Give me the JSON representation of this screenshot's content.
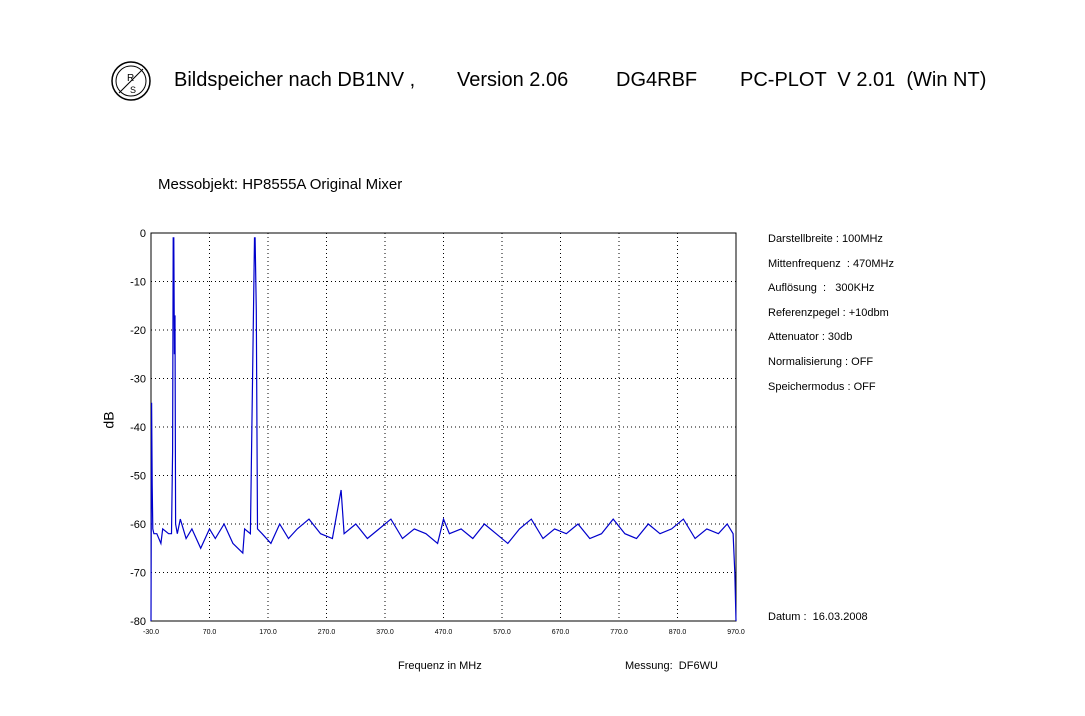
{
  "header": {
    "part1": "Bildspeicher nach DB1NV ,",
    "part2": "Version 2.06",
    "part3": "DG4RBF",
    "part4": "PC-PLOT  V 2.01  (Win NT)",
    "logo_text": "R&S"
  },
  "subtitle": "Messobjekt: HP8555A Original Mixer",
  "settings": [
    "Darstellbreite : 100MHz",
    "Mittenfrequenz  : 470MHz",
    "Auflösung  :   300KHz",
    "Referenzpegel : +10dbm",
    "Attenuator : 30db",
    "Normalisierung : OFF",
    "Speichermodus : OFF"
  ],
  "datum": "Datum :  16.03.2008",
  "messung": "Messung:  DF6WU",
  "chart_data": {
    "type": "line",
    "title": "",
    "xlabel": "Frequenz in MHz",
    "ylabel": "dB",
    "x_ticks": [
      "-30.0",
      "70.0",
      "170.0",
      "270.0",
      "370.0",
      "470.0",
      "570.0",
      "670.0",
      "770.0",
      "870.0",
      "970.0"
    ],
    "y_ticks": [
      "0",
      "-10",
      "-20",
      "-30",
      "-40",
      "-50",
      "-60",
      "-70",
      "-80"
    ],
    "xlim": [
      -30,
      970
    ],
    "ylim": [
      -80,
      0
    ],
    "grid": true,
    "series": [
      {
        "color": "#0000cc",
        "points": [
          [
            -30,
            -80
          ],
          [
            -29,
            -35
          ],
          [
            -28,
            -52
          ],
          [
            -27,
            -61
          ],
          [
            -25,
            -62
          ],
          [
            -20,
            -62
          ],
          [
            -13,
            -64
          ],
          [
            -10,
            -61
          ],
          [
            0,
            -62
          ],
          [
            5,
            -62
          ],
          [
            7,
            -45
          ],
          [
            8,
            -1
          ],
          [
            9,
            -1
          ],
          [
            10,
            -25
          ],
          [
            11,
            -17
          ],
          [
            12,
            -60
          ],
          [
            15,
            -62
          ],
          [
            20,
            -59
          ],
          [
            30,
            -63
          ],
          [
            40,
            -61
          ],
          [
            55,
            -65
          ],
          [
            70,
            -61
          ],
          [
            80,
            -63
          ],
          [
            95,
            -60
          ],
          [
            110,
            -64
          ],
          [
            127,
            -66
          ],
          [
            130,
            -61
          ],
          [
            140,
            -62
          ],
          [
            147,
            -1
          ],
          [
            148,
            -1
          ],
          [
            150,
            -16
          ],
          [
            152,
            -61
          ],
          [
            160,
            -62
          ],
          [
            175,
            -64
          ],
          [
            190,
            -60
          ],
          [
            205,
            -63
          ],
          [
            220,
            -61
          ],
          [
            240,
            -59
          ],
          [
            260,
            -62
          ],
          [
            280,
            -63
          ],
          [
            295,
            -53
          ],
          [
            300,
            -62
          ],
          [
            320,
            -60
          ],
          [
            340,
            -63
          ],
          [
            360,
            -61
          ],
          [
            380,
            -59
          ],
          [
            400,
            -63
          ],
          [
            420,
            -61
          ],
          [
            440,
            -62
          ],
          [
            460,
            -64
          ],
          [
            470,
            -59
          ],
          [
            480,
            -62
          ],
          [
            500,
            -61
          ],
          [
            520,
            -63
          ],
          [
            540,
            -60
          ],
          [
            560,
            -62
          ],
          [
            580,
            -64
          ],
          [
            600,
            -61
          ],
          [
            620,
            -59
          ],
          [
            640,
            -63
          ],
          [
            660,
            -61
          ],
          [
            680,
            -62
          ],
          [
            700,
            -60
          ],
          [
            720,
            -63
          ],
          [
            740,
            -62
          ],
          [
            760,
            -59
          ],
          [
            780,
            -62
          ],
          [
            800,
            -63
          ],
          [
            820,
            -60
          ],
          [
            840,
            -62
          ],
          [
            860,
            -61
          ],
          [
            880,
            -59
          ],
          [
            900,
            -63
          ],
          [
            920,
            -61
          ],
          [
            940,
            -62
          ],
          [
            955,
            -60
          ],
          [
            965,
            -62
          ],
          [
            968,
            -70
          ],
          [
            970,
            -80
          ]
        ]
      }
    ]
  }
}
